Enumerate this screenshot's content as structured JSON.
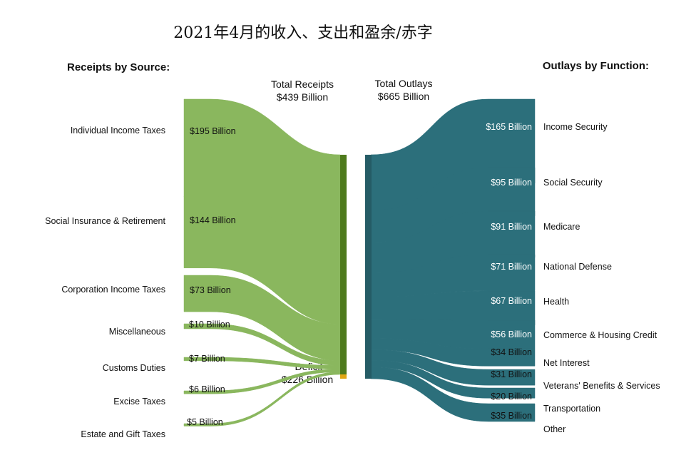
{
  "title": "2021年4月的收入、支出和盈余/赤字",
  "receipts_header": "Receipts by Source:",
  "outlays_header": "Outlays by Function:",
  "total_receipts": {
    "label": "Total Receipts",
    "value": "$439 Billion"
  },
  "total_outlays": {
    "label": "Total Outlays",
    "value": "$665 Billion"
  },
  "deficit": {
    "label": "Deficit",
    "value": "$226 Billion"
  },
  "colors": {
    "receipts": "#8ab75e",
    "receipts_node": "#4e7a1c",
    "deficit": "#dfa514",
    "outlays": "#2c6f7b",
    "outlays_node": "#255c66"
  },
  "receipts": [
    {
      "label": "Individual Income Taxes",
      "value": 195,
      "value_label": "$195 Billion"
    },
    {
      "label": "Social Insurance & Retirement",
      "value": 144,
      "value_label": "$144 Billion"
    },
    {
      "label": "Corporation Income Taxes",
      "value": 73,
      "value_label": "$73 Billion"
    },
    {
      "label": "Miscellaneous",
      "value": 10,
      "value_label": "$10 Billion"
    },
    {
      "label": "Customs Duties",
      "value": 7,
      "value_label": "$7 Billion"
    },
    {
      "label": "Excise Taxes",
      "value": 6,
      "value_label": "$6 Billion"
    },
    {
      "label": "Estate and Gift Taxes",
      "value": 5,
      "value_label": "$5 Billion"
    }
  ],
  "outlays": [
    {
      "label": "Income Security",
      "value": 165,
      "value_label": "$165 Billion"
    },
    {
      "label": "Social Security",
      "value": 95,
      "value_label": "$95 Billion"
    },
    {
      "label": "Medicare",
      "value": 91,
      "value_label": "$91 Billion"
    },
    {
      "label": "National Defense",
      "value": 71,
      "value_label": "$71 Billion"
    },
    {
      "label": "Health",
      "value": 67,
      "value_label": "$67 Billion"
    },
    {
      "label": "Commerce & Housing Credit",
      "value": 56,
      "value_label": "$56 Billion"
    },
    {
      "label": "Net Interest",
      "value": 34,
      "value_label": "$34 Billion"
    },
    {
      "label": "Veterans' Benefits & Services",
      "value": 31,
      "value_label": "$31 Billion"
    },
    {
      "label": "Transportation",
      "value": 20,
      "value_label": "$20 Billion"
    },
    {
      "label": "Other",
      "value": 35,
      "value_label": "$35 Billion"
    }
  ]
}
